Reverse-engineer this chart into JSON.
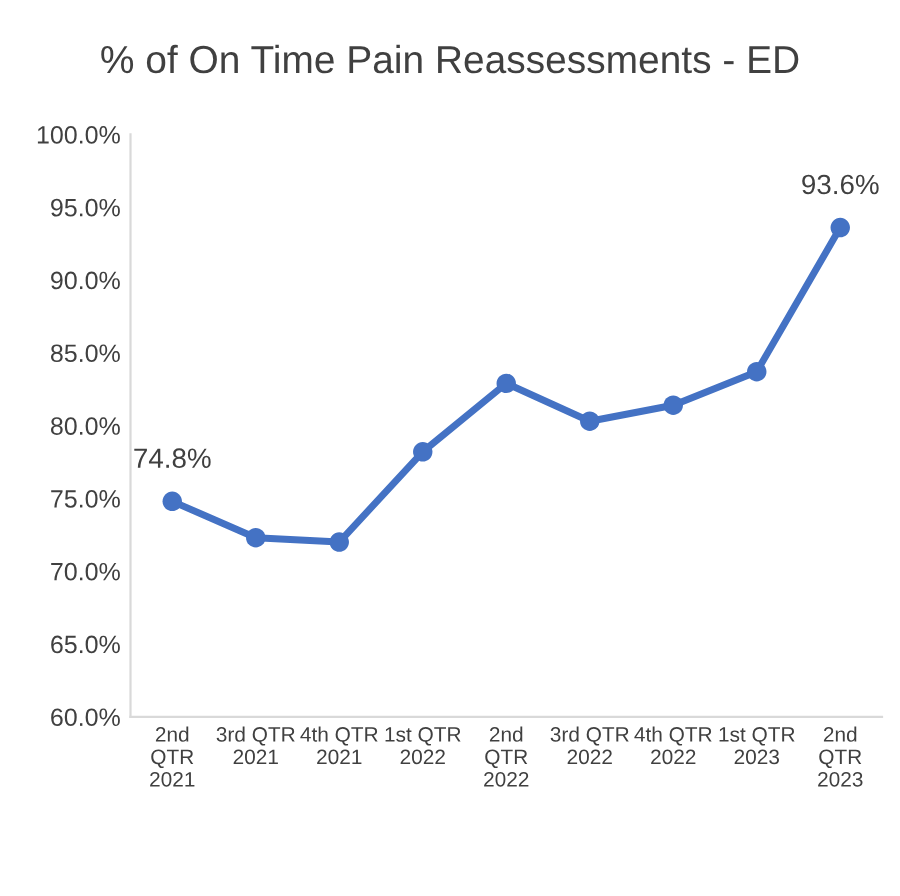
{
  "chart_data": {
    "type": "line",
    "title": "% of On Time Pain Reassessments - ED",
    "categories": [
      "2nd\nQTR\n2021",
      "3rd QTR\n2021",
      "4th QTR\n2021",
      "1st QTR\n2022",
      "2nd\nQTR\n2022",
      "3rd QTR\n2022",
      "4th QTR\n2022",
      "1st QTR\n2023",
      "2nd\nQTR\n2023"
    ],
    "series": [
      {
        "color": "#4472c4",
        "values": [
          74.8,
          72.3,
          72.0,
          78.2,
          82.9,
          80.3,
          81.4,
          83.7,
          93.6
        ],
        "value_labels": [
          "74.8%",
          null,
          null,
          null,
          null,
          null,
          null,
          null,
          "93.6%"
        ]
      }
    ],
    "ylim": [
      60,
      100
    ],
    "yticks": [
      {
        "value": 60,
        "label": "60.0%"
      },
      {
        "value": 65,
        "label": "65.0%"
      },
      {
        "value": 70,
        "label": "70.0%"
      },
      {
        "value": 75,
        "label": "75.0%"
      },
      {
        "value": 80,
        "label": "80.0%"
      },
      {
        "value": 85,
        "label": "85.0%"
      },
      {
        "value": 90,
        "label": "90.0%"
      },
      {
        "value": 95,
        "label": "95.0%"
      },
      {
        "value": 100,
        "label": "100.0%"
      }
    ],
    "marker": "circle",
    "line_style": "solid",
    "grid": false,
    "legend": false
  }
}
